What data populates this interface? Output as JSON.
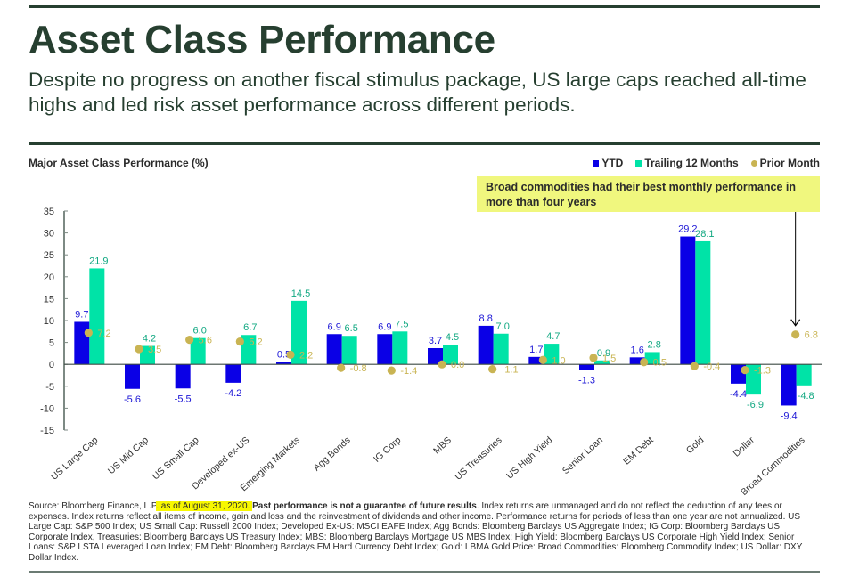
{
  "header": {
    "title": "Asset Class Performance",
    "subtitle": "Despite no progress on another fiscal stimulus package, US large caps reached all-time highs and led risk asset performance across different periods."
  },
  "colors": {
    "ytd": "#0a00e6",
    "ttm": "#00e3a7",
    "prior": "#c9b453",
    "ytd_label": "#1d17d6",
    "ttm_label": "#12a882",
    "prior_label": "#c9b453",
    "callout_bg": "#f0f77e",
    "heading": "#263f30"
  },
  "callout": {
    "text": "Broad commodities had their best monthly performance in more than four years",
    "target_category": "Broad Commodities"
  },
  "footnote": {
    "source_prefix": "Source: Bloomberg Finance, L.P",
    "highlight": ". as of August 31, 2020. ",
    "bold": "Past performance is not a guarantee of future results",
    "rest": ". Index returns are unmanaged and do not reflect the deduction of any fees or expenses. Index returns reflect all items of income, gain and loss and the reinvestment of dividends and other income. Performance returns for periods of less than one year are not annualized. US Large Cap: S&P 500 Index; US Small Cap: Russell 2000 Index; Developed Ex-US: MSCI EAFE Index; Agg Bonds: Bloomberg Barclays US Aggregate Index; IG Corp: Bloomberg Barclays US Corporate Index, Treasuries: Bloomberg Barclays US Treasury Index; MBS: Bloomberg Barclays Mortgage US MBS Index; High Yield: Bloomberg Barclays US Corporate High Yield Index; Senior Loans: S&P LSTA Leveraged Loan Index; EM Debt: Bloomberg Barclays EM Hard Currency Debt Index; Gold: LBMA Gold Price: Broad Commodities: Bloomberg Commodity Index; US Dollar: DXY Dollar Index."
  },
  "chart_data": {
    "type": "bar",
    "title": "Major Asset Class Performance (%)",
    "xlabel": "",
    "ylabel": "",
    "ylim": [
      -15,
      35
    ],
    "yticks": [
      35,
      30,
      25,
      20,
      15,
      10,
      5,
      0,
      -5,
      -10,
      -15
    ],
    "legend_position": "top-right",
    "grid": false,
    "categories": [
      "US Large Cap",
      "US Mid Cap",
      "US Small Cap",
      "Developed ex-US",
      "Emerging Markets",
      "Agg Bonds",
      "IG Corp",
      "MBS",
      "US Treasuries",
      "US High Yield",
      "Senior Loan",
      "EM Debt",
      "Gold",
      "Dollar",
      "Broad Commodities"
    ],
    "series": [
      {
        "name": "YTD",
        "kind": "bar",
        "values": [
          9.7,
          -5.6,
          -5.5,
          -4.2,
          0.5,
          6.9,
          6.9,
          3.7,
          8.8,
          1.7,
          -1.3,
          1.6,
          29.2,
          -4.4,
          -9.4
        ]
      },
      {
        "name": "Trailing 12 Months",
        "kind": "bar",
        "values": [
          21.9,
          4.2,
          6.0,
          6.7,
          14.5,
          6.5,
          7.5,
          4.5,
          7.0,
          4.7,
          0.9,
          2.8,
          28.1,
          -6.9,
          -4.8
        ]
      },
      {
        "name": "Prior Month",
        "kind": "dot",
        "values": [
          7.2,
          3.5,
          5.6,
          5.2,
          2.2,
          -0.8,
          -1.4,
          0.0,
          -1.1,
          1.0,
          1.5,
          0.5,
          -0.4,
          -1.3,
          6.8
        ]
      }
    ],
    "value_labels": {
      "YTD": [
        "9.7",
        "-5.6",
        "-5.5",
        "-4.2",
        "0.5",
        "6.9",
        "6.9",
        "3.7",
        "8.8",
        "1.7",
        "-1.3",
        "1.6",
        "29.2",
        "-4.4",
        "-9.4"
      ],
      "Trailing 12 Months": [
        "21.9",
        "4.2",
        "6.0",
        "6.7",
        "14.5",
        "6.5",
        "7.5",
        "4.5",
        "7.0",
        "4.7",
        "0.9",
        "2.8",
        "28.1",
        "-6.9",
        "-4.8"
      ],
      "Prior Month": [
        "7.2",
        "3.5",
        "5.6",
        "5.2",
        "2.2",
        "-0.8",
        "-1.4",
        "0.0",
        "-1.1",
        "1.0",
        "1.5",
        "0.5",
        "-0.4",
        "-1.3",
        "6.8"
      ]
    }
  }
}
